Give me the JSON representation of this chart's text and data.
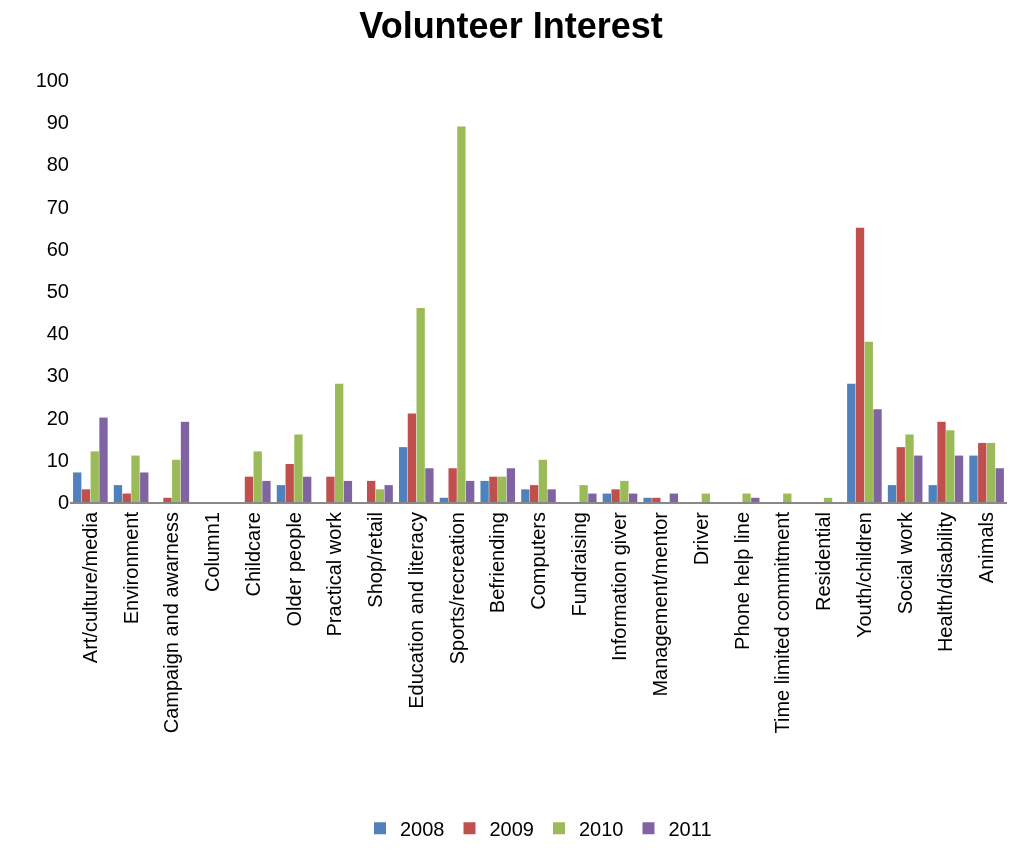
{
  "chart_data": {
    "type": "bar",
    "title": "Volunteer Interest",
    "categories": [
      "Art/culture/media",
      "Environment",
      "Campaign and awarness",
      "Column1",
      "Childcare",
      "Older people",
      "Practical work",
      "Shop/retail",
      "Education and literacy",
      "Sports/recreation",
      "Befriending",
      "Computers",
      "Fundraising",
      "Information giver",
      "Management/mentor",
      "Driver",
      "Phone help line",
      "Time limited commitment",
      "Residential",
      "Youth/children",
      "Social work",
      "Health/disability",
      "Animals"
    ],
    "series": [
      {
        "name": "2008",
        "color": "#4f81bd",
        "values": [
          7,
          4,
          0,
          0,
          0,
          4,
          0,
          0,
          13,
          1,
          5,
          3,
          0,
          2,
          1,
          0,
          0,
          0,
          0,
          28,
          4,
          4,
          11
        ]
      },
      {
        "name": "2009",
        "color": "#c0504d",
        "values": [
          3,
          2,
          1,
          0,
          6,
          9,
          6,
          5,
          21,
          8,
          6,
          4,
          0,
          3,
          1,
          0,
          0,
          0,
          0,
          65,
          13,
          19,
          14
        ]
      },
      {
        "name": "2010",
        "color": "#9bbb59",
        "values": [
          12,
          11,
          10,
          0,
          12,
          16,
          28,
          3,
          46,
          89,
          6,
          10,
          4,
          5,
          0,
          2,
          2,
          2,
          1,
          38,
          16,
          17,
          14
        ]
      },
      {
        "name": "2011",
        "color": "#8064a2",
        "values": [
          20,
          7,
          19,
          0,
          5,
          6,
          5,
          4,
          8,
          5,
          8,
          3,
          2,
          2,
          2,
          0,
          1,
          0,
          0,
          22,
          11,
          11,
          8
        ]
      }
    ],
    "ylim": [
      0,
      100
    ],
    "yticks": [
      0,
      10,
      20,
      30,
      40,
      50,
      60,
      70,
      80,
      90,
      100
    ],
    "grid": false,
    "legend": "bottom"
  }
}
